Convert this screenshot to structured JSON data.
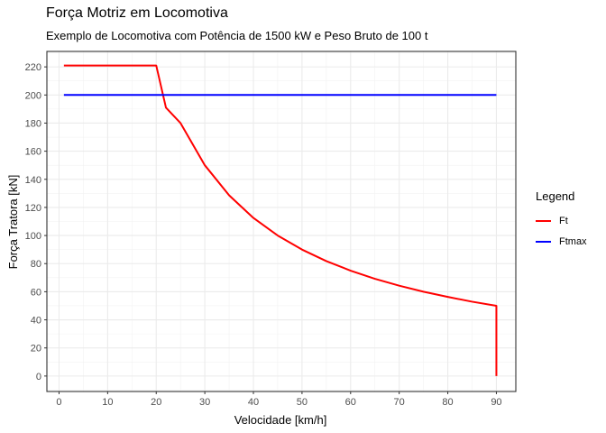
{
  "chart_data": {
    "type": "line",
    "title": "Força Motriz em Locomotiva",
    "subtitle": "Exemplo de Locomotiva com Potência de 1500 kW e Peso Bruto de  100 t",
    "xlabel": "Velocidade [km/h]",
    "ylabel": "Força Tratora [kN]",
    "xlim": [
      -2.5,
      94
    ],
    "ylim": [
      -11,
      231
    ],
    "xticks": [
      0,
      10,
      20,
      30,
      40,
      50,
      60,
      70,
      80,
      90
    ],
    "yticks": [
      0,
      20,
      40,
      60,
      80,
      100,
      120,
      140,
      160,
      180,
      200,
      220
    ],
    "grid": true,
    "legend": {
      "title": "Legend",
      "position": "right"
    },
    "series": [
      {
        "name": "Ft",
        "color": "#ff0000",
        "x": [
          1,
          20,
          22,
          25,
          30,
          35,
          40,
          45,
          50,
          55,
          60,
          65,
          70,
          75,
          80,
          85,
          90,
          90
        ],
        "y": [
          221,
          221,
          191,
          180,
          150,
          128.6,
          112.5,
          100,
          90,
          81.8,
          75,
          69.2,
          64.3,
          60,
          56.3,
          52.9,
          50,
          0
        ]
      },
      {
        "name": "Ftmax",
        "color": "#0000ff",
        "x": [
          1,
          90
        ],
        "y": [
          200,
          200
        ]
      }
    ]
  }
}
